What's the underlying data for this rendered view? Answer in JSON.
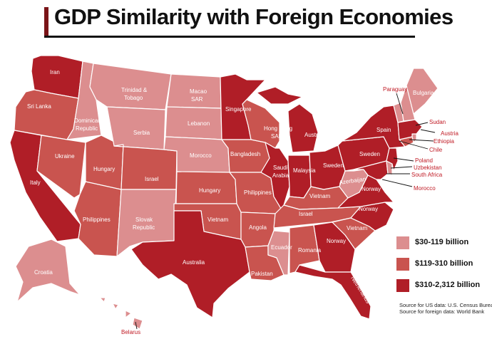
{
  "title": "GDP Similarity with Foreign Economies",
  "colors": {
    "light": "#dc8e8f",
    "medium": "#c9544f",
    "dark": "#b01e27",
    "border": "#ffffff",
    "callout": "#c01a24"
  },
  "legend": [
    {
      "label": "$30-119 billion",
      "tier": "light"
    },
    {
      "label": "$119-310 billion",
      "tier": "medium"
    },
    {
      "label": "$310-2,312 billion",
      "tier": "dark"
    }
  ],
  "source": {
    "us": "Source for US data: U.S. Census Bureau",
    "foreign": "Source for foreign data: World Bank"
  },
  "states": [
    {
      "state": "WA",
      "country": "Iran",
      "tier": "dark"
    },
    {
      "state": "OR",
      "country": "Sri Lanka",
      "tier": "medium"
    },
    {
      "state": "CA",
      "country": "Italy",
      "tier": "dark"
    },
    {
      "state": "ID",
      "country": "Dominican Republic",
      "tier": "light"
    },
    {
      "state": "NV",
      "country": "Ukraine",
      "tier": "medium"
    },
    {
      "state": "AZ",
      "country": "Philippines",
      "tier": "medium"
    },
    {
      "state": "UT",
      "country": "Hungary",
      "tier": "medium"
    },
    {
      "state": "MT",
      "country": "Trinidad & Tobago",
      "tier": "light"
    },
    {
      "state": "WY",
      "country": "Serbia",
      "tier": "light"
    },
    {
      "state": "CO",
      "country": "Israel",
      "tier": "medium"
    },
    {
      "state": "NM",
      "country": "Slovak Republic",
      "tier": "light"
    },
    {
      "state": "ND",
      "country": "Macao SAR",
      "tier": "light"
    },
    {
      "state": "SD",
      "country": "Lebanon",
      "tier": "light"
    },
    {
      "state": "NE",
      "country": "Morocco",
      "tier": "light"
    },
    {
      "state": "KS",
      "country": "Hungary",
      "tier": "medium"
    },
    {
      "state": "OK",
      "country": "Vietnam",
      "tier": "medium"
    },
    {
      "state": "TX",
      "country": "Australia",
      "tier": "dark"
    },
    {
      "state": "MN",
      "country": "Singapore",
      "tier": "dark"
    },
    {
      "state": "IA",
      "country": "Bangladesh",
      "tier": "medium"
    },
    {
      "state": "MO",
      "country": "Philippines",
      "tier": "medium"
    },
    {
      "state": "AR",
      "country": "Angola",
      "tier": "medium"
    },
    {
      "state": "LA",
      "country": "Pakistan",
      "tier": "medium"
    },
    {
      "state": "WI",
      "country": "Hong Kong SAR",
      "tier": "medium"
    },
    {
      "state": "IL",
      "country": "Saudi Arabia",
      "tier": "dark"
    },
    {
      "state": "MS",
      "country": "Ecuador",
      "tier": "light"
    },
    {
      "state": "MI",
      "country": "Austria",
      "tier": "dark"
    },
    {
      "state": "IN",
      "country": "Malaysia",
      "tier": "dark"
    },
    {
      "state": "KY",
      "country": "Vietnam",
      "tier": "medium"
    },
    {
      "state": "TN",
      "country": "Israel",
      "tier": "medium"
    },
    {
      "state": "AL",
      "country": "Romania",
      "tier": "medium"
    },
    {
      "state": "OH",
      "country": "Sweden",
      "tier": "dark"
    },
    {
      "state": "GA",
      "country": "Norway",
      "tier": "dark"
    },
    {
      "state": "FL",
      "country": "Netherlands",
      "tier": "dark"
    },
    {
      "state": "SC",
      "country": "Vietnam",
      "tier": "medium"
    },
    {
      "state": "NC",
      "country": "Norway",
      "tier": "dark"
    },
    {
      "state": "VA",
      "country": "Norway",
      "tier": "dark"
    },
    {
      "state": "WV",
      "country": "Azerbaijan",
      "tier": "light"
    },
    {
      "state": "PA",
      "country": "Sweden",
      "tier": "dark"
    },
    {
      "state": "NY",
      "country": "Spain",
      "tier": "dark"
    },
    {
      "state": "VT",
      "country": "Paraguay",
      "tier": "light"
    },
    {
      "state": "NH",
      "country": "Paraguay",
      "tier": "light"
    },
    {
      "state": "ME",
      "country": "Bulgaria",
      "tier": "light"
    },
    {
      "state": "MA",
      "country": "Austria",
      "tier": "dark"
    },
    {
      "state": "RI",
      "country": "Sudan",
      "tier": "light"
    },
    {
      "state": "CT",
      "country": "Ethiopia",
      "tier": "medium"
    },
    {
      "state": "NJ",
      "country": "Poland",
      "tier": "dark"
    },
    {
      "state": "DE",
      "country": "Uzbekistan",
      "tier": "light"
    },
    {
      "state": "MD",
      "country": "Chile",
      "tier": "dark"
    },
    {
      "state": "DC",
      "country": "South Africa",
      "tier": "medium"
    },
    {
      "state": "DC2",
      "country": "Morocco",
      "tier": "medium"
    },
    {
      "state": "AK",
      "country": "Croatia",
      "tier": "light"
    },
    {
      "state": "HI",
      "country": "Belarus",
      "tier": "light"
    }
  ],
  "map_labels": {
    "WA": "Iran",
    "OR": "Sri Lanka",
    "CA": "Italy",
    "NV": "Ukraine",
    "AZ": "Philippines",
    "UT": "Hungary",
    "ID1": "Dominican",
    "ID2": "Republic",
    "MT1": "Trinidad &",
    "MT2": "Tobago",
    "WY": "Serbia",
    "CO": "Israel",
    "NM1": "Slovak",
    "NM2": "Republic",
    "ND1": "Macao",
    "ND2": "SAR",
    "SD": "Lebanon",
    "NE": "Morocco",
    "KS": "Hungary",
    "OK": "Vietnam",
    "TX": "Australia",
    "MN": "Singapore",
    "IA": "Bangladesh",
    "MO": "Philippines",
    "AR": "Angola",
    "LA": "Pakistan",
    "WI1": "Hong Kong",
    "WI2": "SAR",
    "IL1": "Saudi",
    "IL2": "Arabia",
    "MS": "Ecuador",
    "MI": "Austria",
    "IN": "Malaysia",
    "KY": "Vietnam",
    "TN": "Israel",
    "AL": "Romania",
    "OH": "Sweden",
    "GA": "Norway",
    "FL": "Netherlands",
    "SC": "Vietnam",
    "NC": "Norway",
    "VA": "Norway",
    "WV": "Azerbaijan",
    "PA": "Sweden",
    "NY": "Spain",
    "ME": "Bulgaria",
    "AK": "Croatia"
  },
  "callouts": {
    "VT": "Paraguay",
    "RI": "Sudan",
    "MA": "Austria",
    "CT": "Ethiopia",
    "MD": "Chile",
    "NJ": "Poland",
    "DE": "Uzbekistan",
    "DC": "South Africa",
    "DC2": "Morocco",
    "HI": "Belarus"
  }
}
